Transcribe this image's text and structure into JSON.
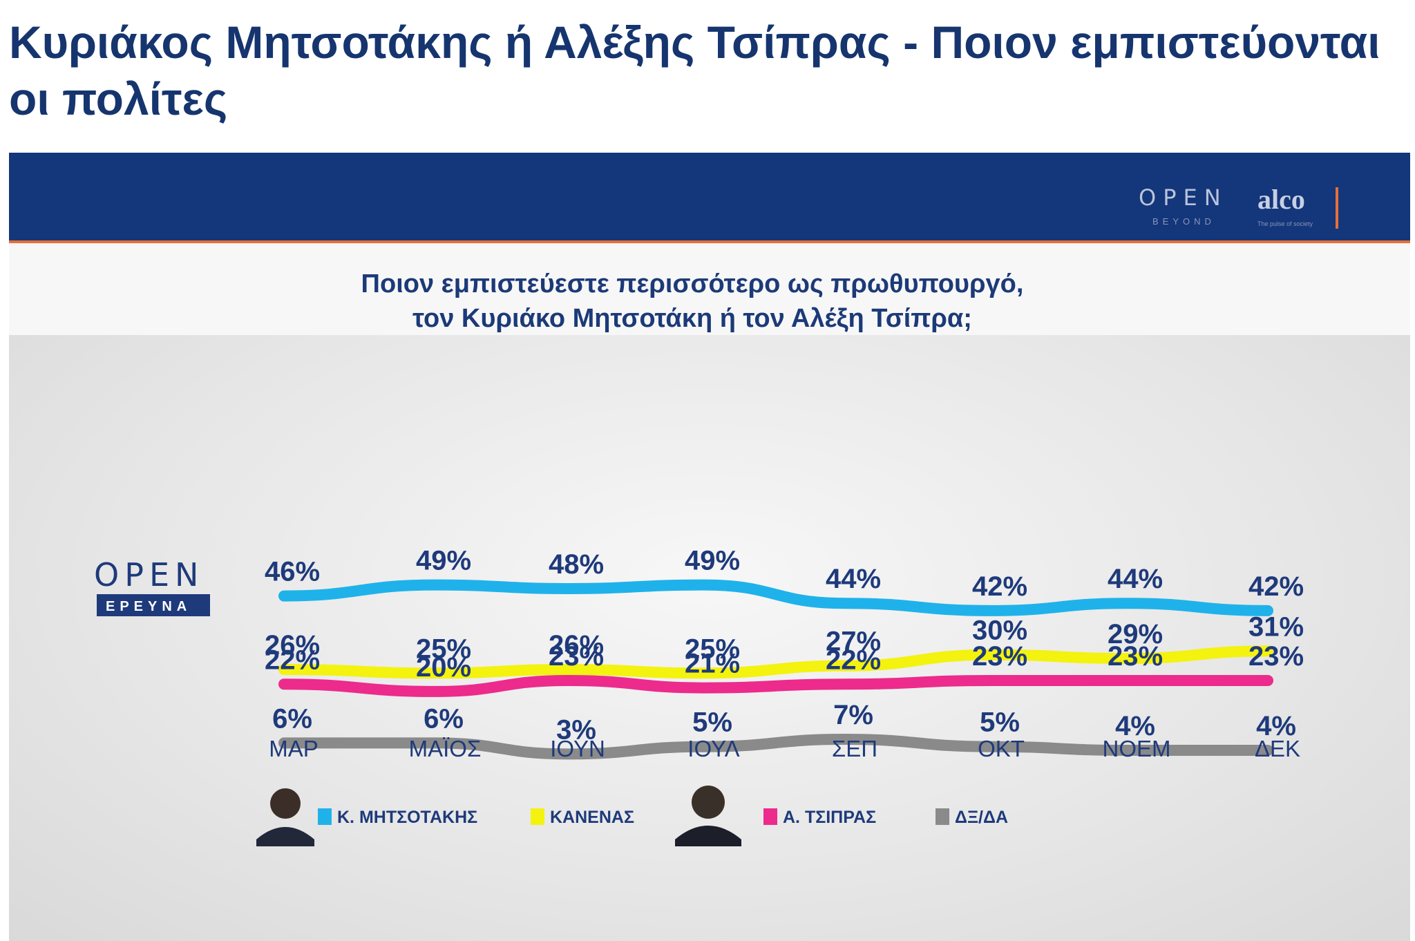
{
  "article": {
    "title": "Κυριάκος Μητσοτάκης ή Αλέξης Τσίπρας - Ποιον εμπιστεύονται οι πολίτες"
  },
  "branding": {
    "open": "OPEN",
    "beyond": "BEYOND",
    "alco": "alco",
    "alco_tagline": "The pulse of society",
    "erevna_open": "OPEN",
    "erevna": "ΕΡΕΥΝΑ"
  },
  "colors": {
    "title": "#16356f",
    "top_bar": "#14367a",
    "accent": "#e4703a",
    "text": "#1e3a7b"
  },
  "chart_data": {
    "type": "line",
    "title_line1": "Ποιον εμπιστεύεστε περισσότερο ως πρωθυπουργό,",
    "title_line2": "τον Κυριάκο Μητσοτάκη ή τον Αλέξη Τσίπρα;",
    "categories": [
      "ΜΑΡ",
      "ΜΑΪΟΣ",
      "ΙΟΥΝ",
      "ΙΟΥΛ",
      "ΣΕΠ",
      "ΟΚΤ",
      "ΝΟΕΜ",
      "ΔΕΚ"
    ],
    "value_suffix": "%",
    "series": [
      {
        "name": "Κ. ΜΗΤΣΟΤΑΚΗΣ",
        "color": "#1fb2ea",
        "values": [
          46,
          49,
          48,
          49,
          44,
          42,
          44,
          42
        ]
      },
      {
        "name": "ΚΑΝΕΝΑΣ",
        "color": "#f4f20f",
        "values": [
          26,
          25,
          26,
          25,
          27,
          30,
          29,
          31
        ]
      },
      {
        "name": "Α. ΤΣΙΠΡΑΣ",
        "color": "#ec2b8c",
        "values": [
          22,
          20,
          23,
          21,
          22,
          23,
          23,
          23
        ]
      },
      {
        "name": "ΔΞ/ΔΑ",
        "color": "#8a8a8a",
        "values": [
          6,
          6,
          3,
          5,
          7,
          5,
          4,
          4
        ]
      }
    ],
    "legend_position": "bottom",
    "grid": false
  }
}
